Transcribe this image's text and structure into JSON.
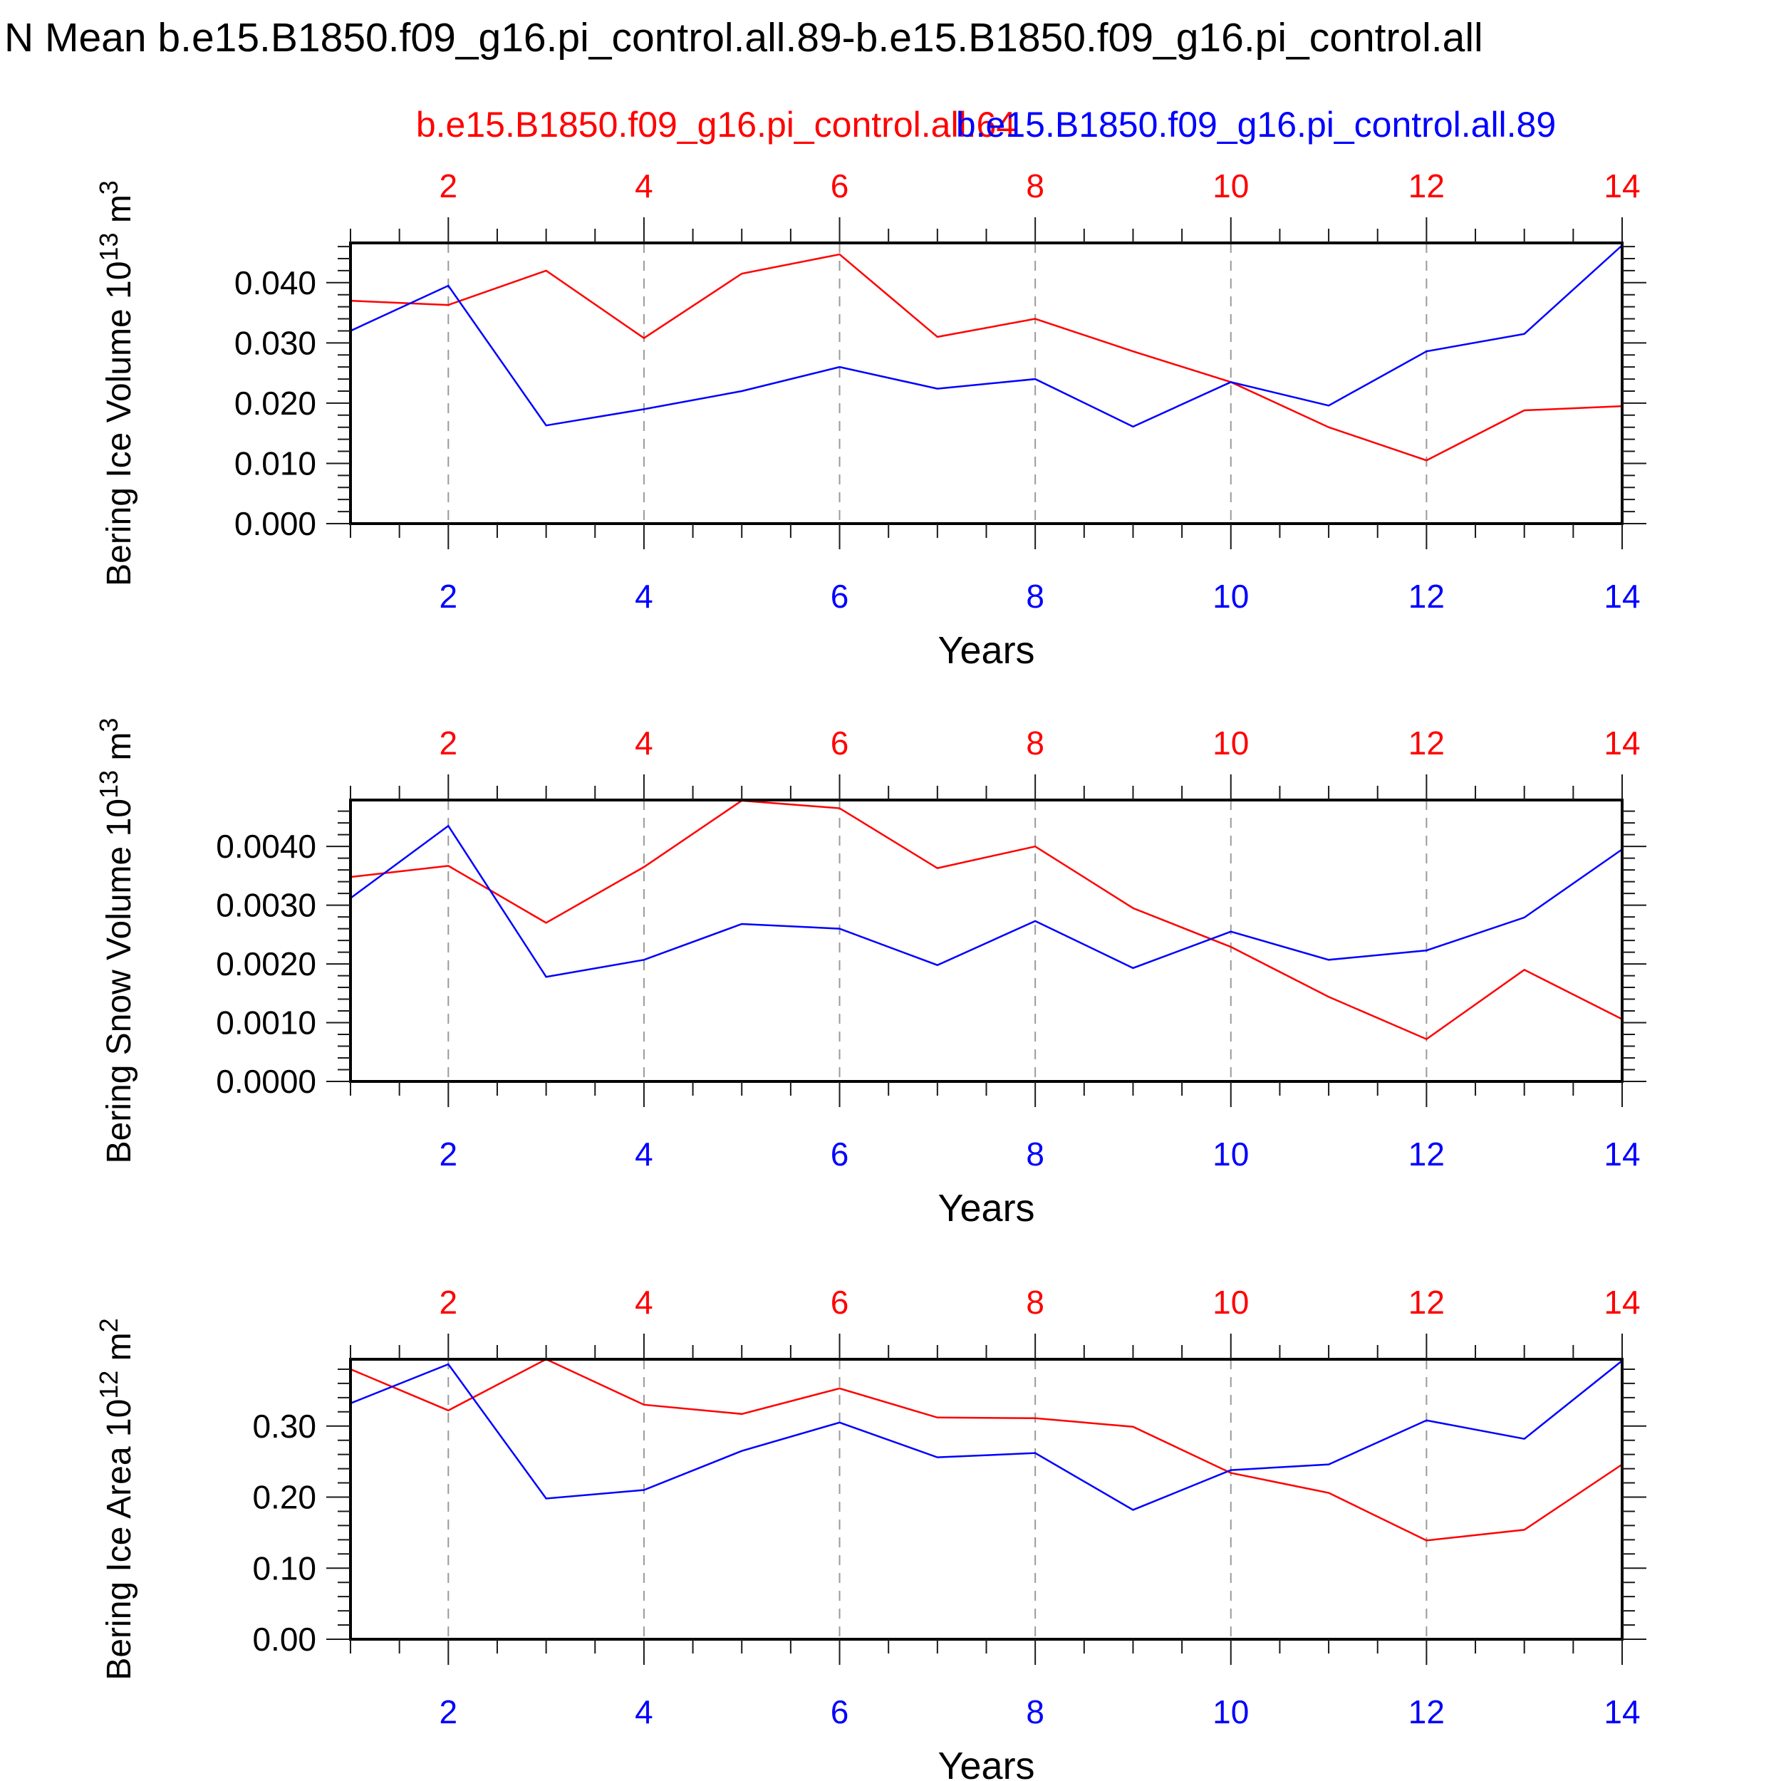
{
  "title": "N Mean b.e15.B1850.f09_g16.pi_control.all.89-b.e15.B1850.f09_g16.pi_control.all",
  "legend": {
    "red_label": "b.e15.B1850.f09_g16.pi_control.all.64",
    "blue_label": "b.e15.B1850.f09_g16.pi_control.all.89"
  },
  "colors": {
    "red": "#ff0000",
    "blue": "#0000ff",
    "grid": "#9a9a9a",
    "frame": "#000000",
    "tick": "#1a1a1a",
    "text": "#000000"
  },
  "chart_data": [
    {
      "type": "line",
      "xlabel": "Years",
      "ylabel_parts": [
        {
          "t": "Bering Ice Volume 10"
        },
        {
          "t": "13",
          "sup": true
        },
        {
          "t": " m"
        },
        {
          "t": "3",
          "sup": true
        }
      ],
      "x": [
        1,
        2,
        3,
        4,
        5,
        6,
        7,
        8,
        9,
        10,
        11,
        12,
        13,
        14
      ],
      "xlim": [
        1,
        14
      ],
      "x_labeled_ticks": [
        2,
        4,
        6,
        8,
        10,
        12,
        14
      ],
      "x_tick_labels": [
        "2",
        "4",
        "6",
        "8",
        "10",
        "12",
        "14"
      ],
      "x_minor_step": 0.5,
      "gridlines_x": [
        2,
        4,
        6,
        8,
        10,
        12
      ],
      "ylim": [
        0,
        0.0466
      ],
      "yticks": [
        0.0,
        0.01,
        0.02,
        0.03,
        0.04
      ],
      "ytick_labels": [
        "0.000",
        "0.010",
        "0.020",
        "0.030",
        "0.040"
      ],
      "y_minor_step": 0.002,
      "series": [
        {
          "name": "b.e15.B1850.f09_g16.pi_control.all.64",
          "color": "red",
          "values": [
            0.037,
            0.0363,
            0.042,
            0.0308,
            0.0415,
            0.0447,
            0.031,
            0.034,
            0.0286,
            0.0235,
            0.016,
            0.0105,
            0.0188,
            0.0195
          ]
        },
        {
          "name": "b.e15.B1850.f09_g16.pi_control.all.89",
          "color": "blue",
          "values": [
            0.032,
            0.0395,
            0.0163,
            0.019,
            0.022,
            0.026,
            0.0224,
            0.024,
            0.0161,
            0.0235,
            0.0196,
            0.0286,
            0.0315,
            0.0462
          ]
        }
      ]
    },
    {
      "type": "line",
      "xlabel": "Years",
      "ylabel_parts": [
        {
          "t": "Bering Snow Volume 10"
        },
        {
          "t": "13",
          "sup": true
        },
        {
          "t": " m"
        },
        {
          "t": "3",
          "sup": true
        }
      ],
      "x": [
        1,
        2,
        3,
        4,
        5,
        6,
        7,
        8,
        9,
        10,
        11,
        12,
        13,
        14
      ],
      "xlim": [
        1,
        14
      ],
      "x_labeled_ticks": [
        2,
        4,
        6,
        8,
        10,
        12,
        14
      ],
      "x_tick_labels": [
        "2",
        "4",
        "6",
        "8",
        "10",
        "12",
        "14"
      ],
      "x_minor_step": 0.5,
      "gridlines_x": [
        2,
        4,
        6,
        8,
        10,
        12
      ],
      "ylim": [
        0,
        0.00479
      ],
      "yticks": [
        0.0,
        0.001,
        0.002,
        0.003,
        0.004
      ],
      "ytick_labels": [
        "0.0000",
        "0.0010",
        "0.0020",
        "0.0030",
        "0.0040"
      ],
      "y_minor_step": 0.0002,
      "series": [
        {
          "name": "b.e15.B1850.f09_g16.pi_control.all.64",
          "color": "red",
          "values": [
            0.00348,
            0.00367,
            0.0027,
            0.00365,
            0.00478,
            0.00465,
            0.00363,
            0.004,
            0.00295,
            0.00229,
            0.00144,
            0.00072,
            0.0019,
            0.00106
          ]
        },
        {
          "name": "b.e15.B1850.f09_g16.pi_control.all.89",
          "color": "blue",
          "values": [
            0.00312,
            0.00435,
            0.00178,
            0.00207,
            0.00268,
            0.0026,
            0.00198,
            0.00273,
            0.00193,
            0.00255,
            0.00207,
            0.00223,
            0.00279,
            0.00395
          ]
        }
      ]
    },
    {
      "type": "line",
      "xlabel": "Years",
      "ylabel_parts": [
        {
          "t": "Bering Ice Area 10"
        },
        {
          "t": "12",
          "sup": true
        },
        {
          "t": " m"
        },
        {
          "t": "2",
          "sup": true
        }
      ],
      "x": [
        1,
        2,
        3,
        4,
        5,
        6,
        7,
        8,
        9,
        10,
        11,
        12,
        13,
        14
      ],
      "xlim": [
        1,
        14
      ],
      "x_labeled_ticks": [
        2,
        4,
        6,
        8,
        10,
        12,
        14
      ],
      "x_tick_labels": [
        "2",
        "4",
        "6",
        "8",
        "10",
        "12",
        "14"
      ],
      "x_minor_step": 0.5,
      "gridlines_x": [
        2,
        4,
        6,
        8,
        10,
        12
      ],
      "ylim": [
        0,
        0.394
      ],
      "yticks": [
        0.0,
        0.1,
        0.2,
        0.3
      ],
      "ytick_labels": [
        "0.00",
        "0.10",
        "0.20",
        "0.30"
      ],
      "y_minor_step": 0.02,
      "series": [
        {
          "name": "b.e15.B1850.f09_g16.pi_control.all.64",
          "color": "red",
          "values": [
            0.38,
            0.322,
            0.394,
            0.33,
            0.317,
            0.353,
            0.312,
            0.311,
            0.299,
            0.234,
            0.206,
            0.139,
            0.154,
            0.246
          ]
        },
        {
          "name": "b.e15.B1850.f09_g16.pi_control.all.89",
          "color": "blue",
          "values": [
            0.332,
            0.387,
            0.198,
            0.21,
            0.265,
            0.305,
            0.256,
            0.262,
            0.182,
            0.238,
            0.246,
            0.308,
            0.282,
            0.392
          ]
        }
      ]
    }
  ]
}
